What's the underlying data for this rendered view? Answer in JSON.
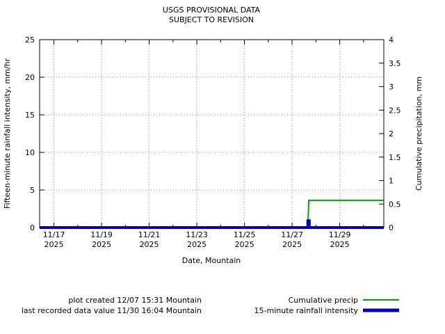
{
  "title": {
    "line1": "USGS PROVISIONAL DATA",
    "line2": "SUBJECT TO REVISION"
  },
  "footer": {
    "created": "plot created 12/07 15:31 Mountain",
    "last_value": "last recorded data value 11/30 16:04 Mountain"
  },
  "legend": [
    {
      "label": "Cumulative precip",
      "color": "#00a400"
    },
    {
      "label": "15-minute rainfall intensity",
      "color": "#0000b4"
    }
  ],
  "chart_data": {
    "type": "line",
    "title": "USGS PROVISIONAL DATA SUBJECT TO REVISION",
    "xlabel": "Date, Mountain",
    "ylabel_left": "Fifteen-minute rainfall intensity, mm/hr",
    "ylabel_right": "Cumulative precipitation, mm",
    "grid": true,
    "x_domain_days": [
      16.4,
      30.85
    ],
    "x_ticks": [
      {
        "v": 17,
        "l1": "11/17",
        "l2": "2025"
      },
      {
        "v": 19,
        "l1": "11/19",
        "l2": "2025"
      },
      {
        "v": 21,
        "l1": "11/21",
        "l2": "2025"
      },
      {
        "v": 23,
        "l1": "11/23",
        "l2": "2025"
      },
      {
        "v": 25,
        "l1": "11/25",
        "l2": "2025"
      },
      {
        "v": 27,
        "l1": "11/27",
        "l2": "2025"
      },
      {
        "v": 29,
        "l1": "11/29",
        "l2": "2025"
      }
    ],
    "x_minor_ticks": [
      18,
      20,
      22,
      24,
      26,
      28,
      30
    ],
    "y_left": {
      "min": 0,
      "max": 25,
      "ticks": [
        {
          "v": 0,
          "label": "0"
        },
        {
          "v": 5,
          "label": "5"
        },
        {
          "v": 10,
          "label": "10"
        },
        {
          "v": 15,
          "label": "15"
        },
        {
          "v": 20,
          "label": "20"
        },
        {
          "v": 25,
          "label": "25"
        }
      ]
    },
    "y_right": {
      "min": 0,
      "max": 4,
      "ticks": [
        {
          "v": 0,
          "label": "0"
        },
        {
          "v": 0.5,
          "label": "0.5"
        },
        {
          "v": 1,
          "label": "1"
        },
        {
          "v": 1.5,
          "label": "1.5"
        },
        {
          "v": 2,
          "label": "2"
        },
        {
          "v": 2.5,
          "label": "2.5"
        },
        {
          "v": 3,
          "label": "3"
        },
        {
          "v": 3.5,
          "label": "3.5"
        },
        {
          "v": 4,
          "label": "4"
        }
      ]
    },
    "series": [
      {
        "name": "Cumulative precip",
        "axis": "right",
        "color": "#00a400",
        "width": 2,
        "points": [
          [
            16.4,
            0
          ],
          [
            27.66,
            0
          ],
          [
            27.7,
            0.58
          ],
          [
            30.85,
            0.58
          ]
        ]
      },
      {
        "name": "15-minute rainfall intensity",
        "axis": "left",
        "color": "#0000b4",
        "width": 4,
        "points": [
          [
            16.4,
            0
          ],
          [
            27.66,
            0
          ],
          [
            27.66,
            0.9
          ],
          [
            27.72,
            0.9
          ],
          [
            27.72,
            0
          ],
          [
            30.85,
            0
          ]
        ]
      }
    ]
  }
}
